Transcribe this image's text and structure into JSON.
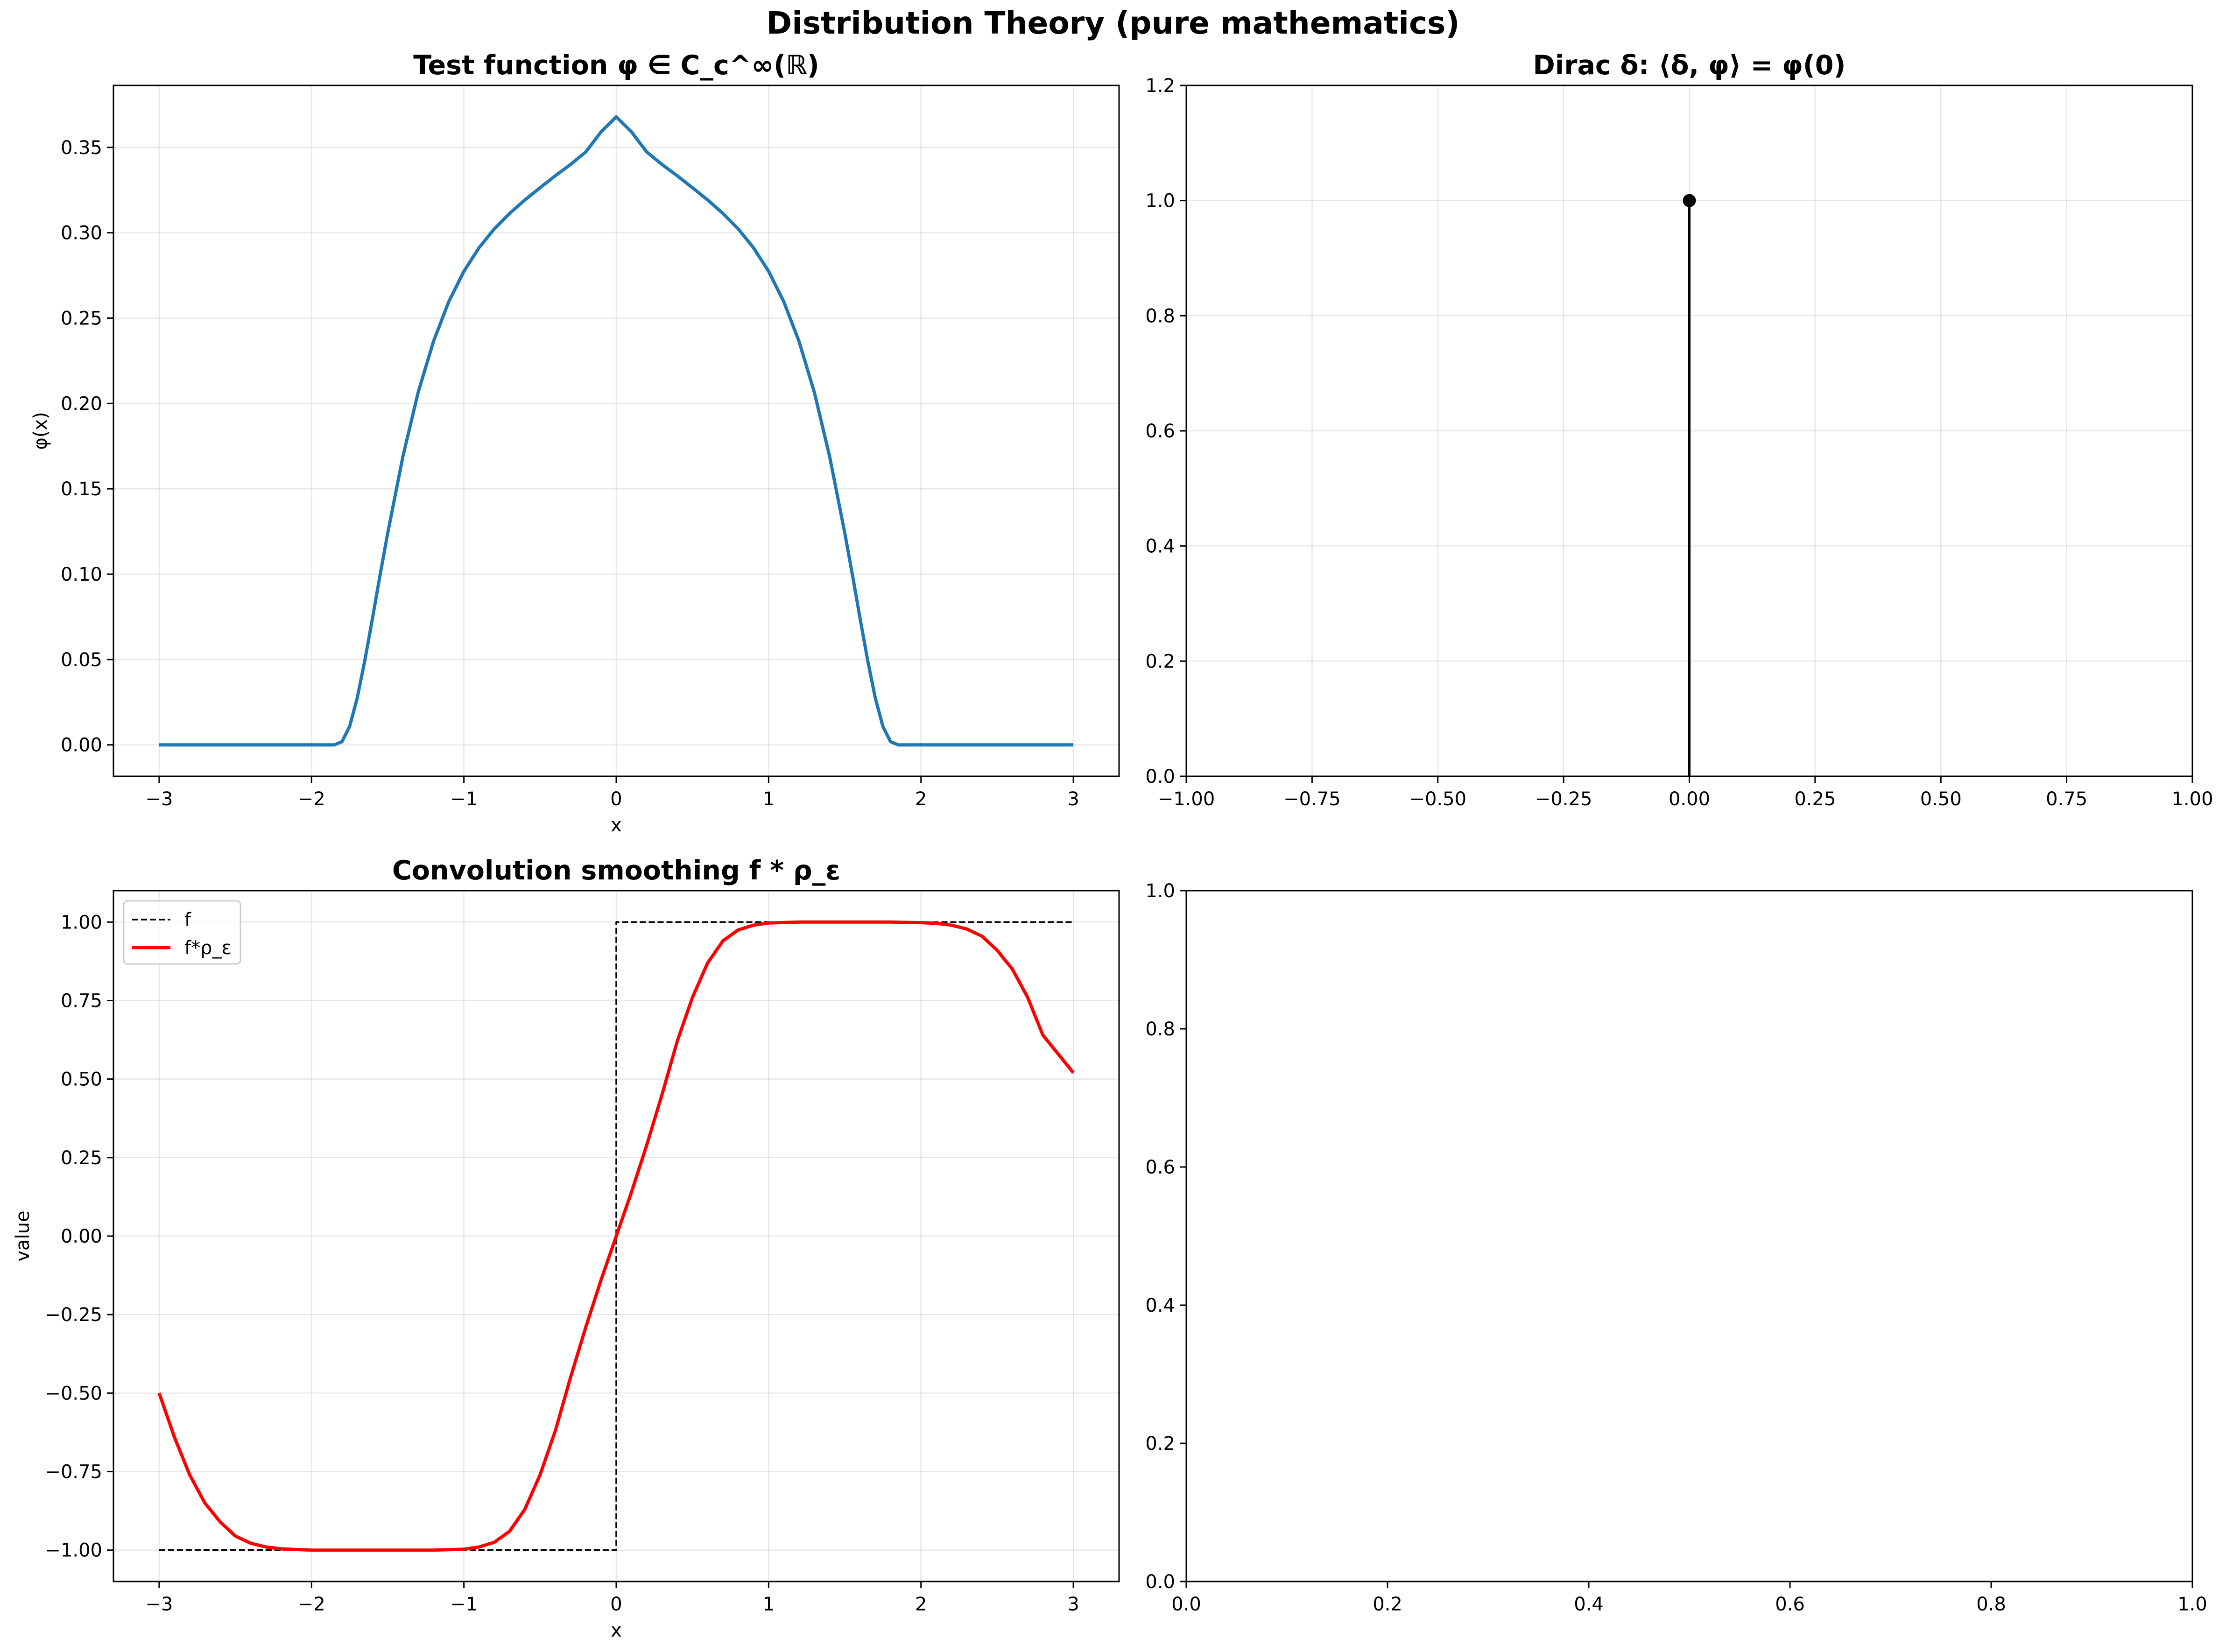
{
  "suptitle": "Distribution Theory (pure mathematics)",
  "chart_data": [
    {
      "type": "line",
      "title": "Test function φ ∈ C_c^∞(ℝ)",
      "xlabel": "x",
      "ylabel": "φ(x)",
      "xlim": [
        -3.3,
        3.3
      ],
      "ylim": [
        -0.0184,
        0.3863
      ],
      "xticks": [
        -3,
        -2,
        -1,
        0,
        1,
        2,
        3
      ],
      "xtick_labels": [
        "−3",
        "−2",
        "−1",
        "0",
        "1",
        "2",
        "3"
      ],
      "yticks": [
        0,
        0.05,
        0.1,
        0.15,
        0.2,
        0.25,
        0.3,
        0.35
      ],
      "ytick_labels": [
        "0.00",
        "0.05",
        "0.10",
        "0.15",
        "0.20",
        "0.25",
        "0.30",
        "0.35"
      ],
      "grid": true,
      "series": [
        {
          "color": "#1f77b4",
          "x": [
            -3,
            -1.85,
            -1.8,
            -1.75,
            -1.7,
            -1.65,
            -1.6,
            -1.55,
            -1.5,
            -1.4,
            -1.3,
            -1.2,
            -1.1,
            -1,
            -0.9,
            -0.8,
            -0.7,
            -0.6,
            -0.5,
            -0.4,
            -0.3,
            -0.2,
            -0.1,
            0,
            0.1,
            0.2,
            0.3,
            0.4,
            0.5,
            0.6,
            0.7,
            0.8,
            0.9,
            1,
            1.1,
            1.2,
            1.3,
            1.4,
            1.5,
            1.55,
            1.6,
            1.65,
            1.7,
            1.75,
            1.8,
            1.85,
            3
          ],
          "y": [
            0,
            0,
            0.0019,
            0.0108,
            0.0275,
            0.0495,
            0.0741,
            0.0995,
            0.1241,
            0.1691,
            0.2065,
            0.2363,
            0.2595,
            0.2774,
            0.2913,
            0.3023,
            0.3113,
            0.3192,
            0.3264,
            0.3334,
            0.34,
            0.3473,
            0.3591,
            0.3679,
            0.3591,
            0.3473,
            0.34,
            0.3334,
            0.3264,
            0.3192,
            0.3113,
            0.3023,
            0.2913,
            0.2774,
            0.2595,
            0.2363,
            0.2065,
            0.1691,
            0.1241,
            0.0995,
            0.0741,
            0.0495,
            0.0275,
            0.0108,
            0.0019,
            0,
            0
          ]
        }
      ]
    },
    {
      "type": "line",
      "title": "Dirac δ: ⟨δ, φ⟩ = φ(0)",
      "xlabel": "",
      "ylabel": "",
      "xlim": [
        -1,
        1
      ],
      "ylim": [
        0,
        1.2
      ],
      "xticks": [
        -1,
        -0.75,
        -0.5,
        -0.25,
        0,
        0.25,
        0.5,
        0.75,
        1
      ],
      "xtick_labels": [
        "−1.00",
        "−0.75",
        "−0.50",
        "−0.25",
        "0.00",
        "0.25",
        "0.50",
        "0.75",
        "1.00"
      ],
      "yticks": [
        0,
        0.2,
        0.4,
        0.6,
        0.8,
        1,
        1.2
      ],
      "ytick_labels": [
        "0.0",
        "0.2",
        "0.4",
        "0.6",
        "0.8",
        "1.0",
        "1.2"
      ],
      "grid": true,
      "series": [
        {
          "color": "#000000",
          "x": [
            0,
            0
          ],
          "y": [
            0,
            1
          ],
          "marker_x": 0,
          "marker_y": 1
        }
      ]
    },
    {
      "type": "line",
      "title": "Convolution smoothing f * ρ_ε",
      "xlabel": "x",
      "ylabel": "value",
      "xlim": [
        -3.3,
        3.3
      ],
      "ylim": [
        -1.1,
        1.1
      ],
      "xticks": [
        -3,
        -2,
        -1,
        0,
        1,
        2,
        3
      ],
      "xtick_labels": [
        "−3",
        "−2",
        "−1",
        "0",
        "1",
        "2",
        "3"
      ],
      "yticks": [
        -1,
        -0.75,
        -0.5,
        -0.25,
        0,
        0.25,
        0.5,
        0.75,
        1
      ],
      "ytick_labels": [
        "−1.00",
        "−0.75",
        "−0.50",
        "−0.25",
        "0.00",
        "0.25",
        "0.50",
        "0.75",
        "1.00"
      ],
      "grid": true,
      "legend": "upper left",
      "series": [
        {
          "name": "f",
          "color": "#000000",
          "style": "dashed",
          "x": [
            -3,
            0,
            0,
            3
          ],
          "y": [
            -1,
            -1,
            1,
            1
          ]
        },
        {
          "name": "f*ρ_ε",
          "color": "#ff0000",
          "style": "solid",
          "x": [
            -3,
            -2.9,
            -2.8,
            -2.7,
            -2.6,
            -2.5,
            -2.4,
            -2.3,
            -2.2,
            -2.1,
            -2,
            -1.8,
            -1.5,
            -1.2,
            -1,
            -0.9,
            -0.8,
            -0.7,
            -0.6,
            -0.5,
            -0.4,
            -0.3,
            -0.2,
            -0.1,
            0,
            0.1,
            0.2,
            0.3,
            0.4,
            0.5,
            0.6,
            0.7,
            0.8,
            0.9,
            1,
            1.2,
            1.5,
            1.8,
            2,
            2.1,
            2.2,
            2.3,
            2.4,
            2.5,
            2.6,
            2.7,
            2.8,
            2.9,
            3
          ],
          "y": [
            -0.5,
            -0.64,
            -0.76,
            -0.85,
            -0.91,
            -0.955,
            -0.978,
            -0.99,
            -0.996,
            -0.998,
            -1,
            -1,
            -1,
            -1,
            -0.997,
            -0.99,
            -0.975,
            -0.94,
            -0.87,
            -0.76,
            -0.62,
            -0.45,
            -0.29,
            -0.14,
            0,
            0.14,
            0.29,
            0.45,
            0.62,
            0.76,
            0.87,
            0.94,
            0.975,
            0.99,
            0.997,
            1,
            1,
            1,
            0.998,
            0.996,
            0.99,
            0.978,
            0.955,
            0.91,
            0.85,
            0.76,
            0.64,
            0.58,
            0.52
          ]
        }
      ]
    },
    {
      "type": "line",
      "title": "",
      "xlabel": "",
      "ylabel": "",
      "xlim": [
        0,
        1
      ],
      "ylim": [
        0,
        1
      ],
      "xticks": [
        0,
        0.2,
        0.4,
        0.6,
        0.8,
        1
      ],
      "xtick_labels": [
        "0.0",
        "0.2",
        "0.4",
        "0.6",
        "0.8",
        "1.0"
      ],
      "yticks": [
        0,
        0.2,
        0.4,
        0.6,
        0.8,
        1
      ],
      "ytick_labels": [
        "0.0",
        "0.2",
        "0.4",
        "0.6",
        "0.8",
        "1.0"
      ],
      "grid": false,
      "series": []
    }
  ]
}
